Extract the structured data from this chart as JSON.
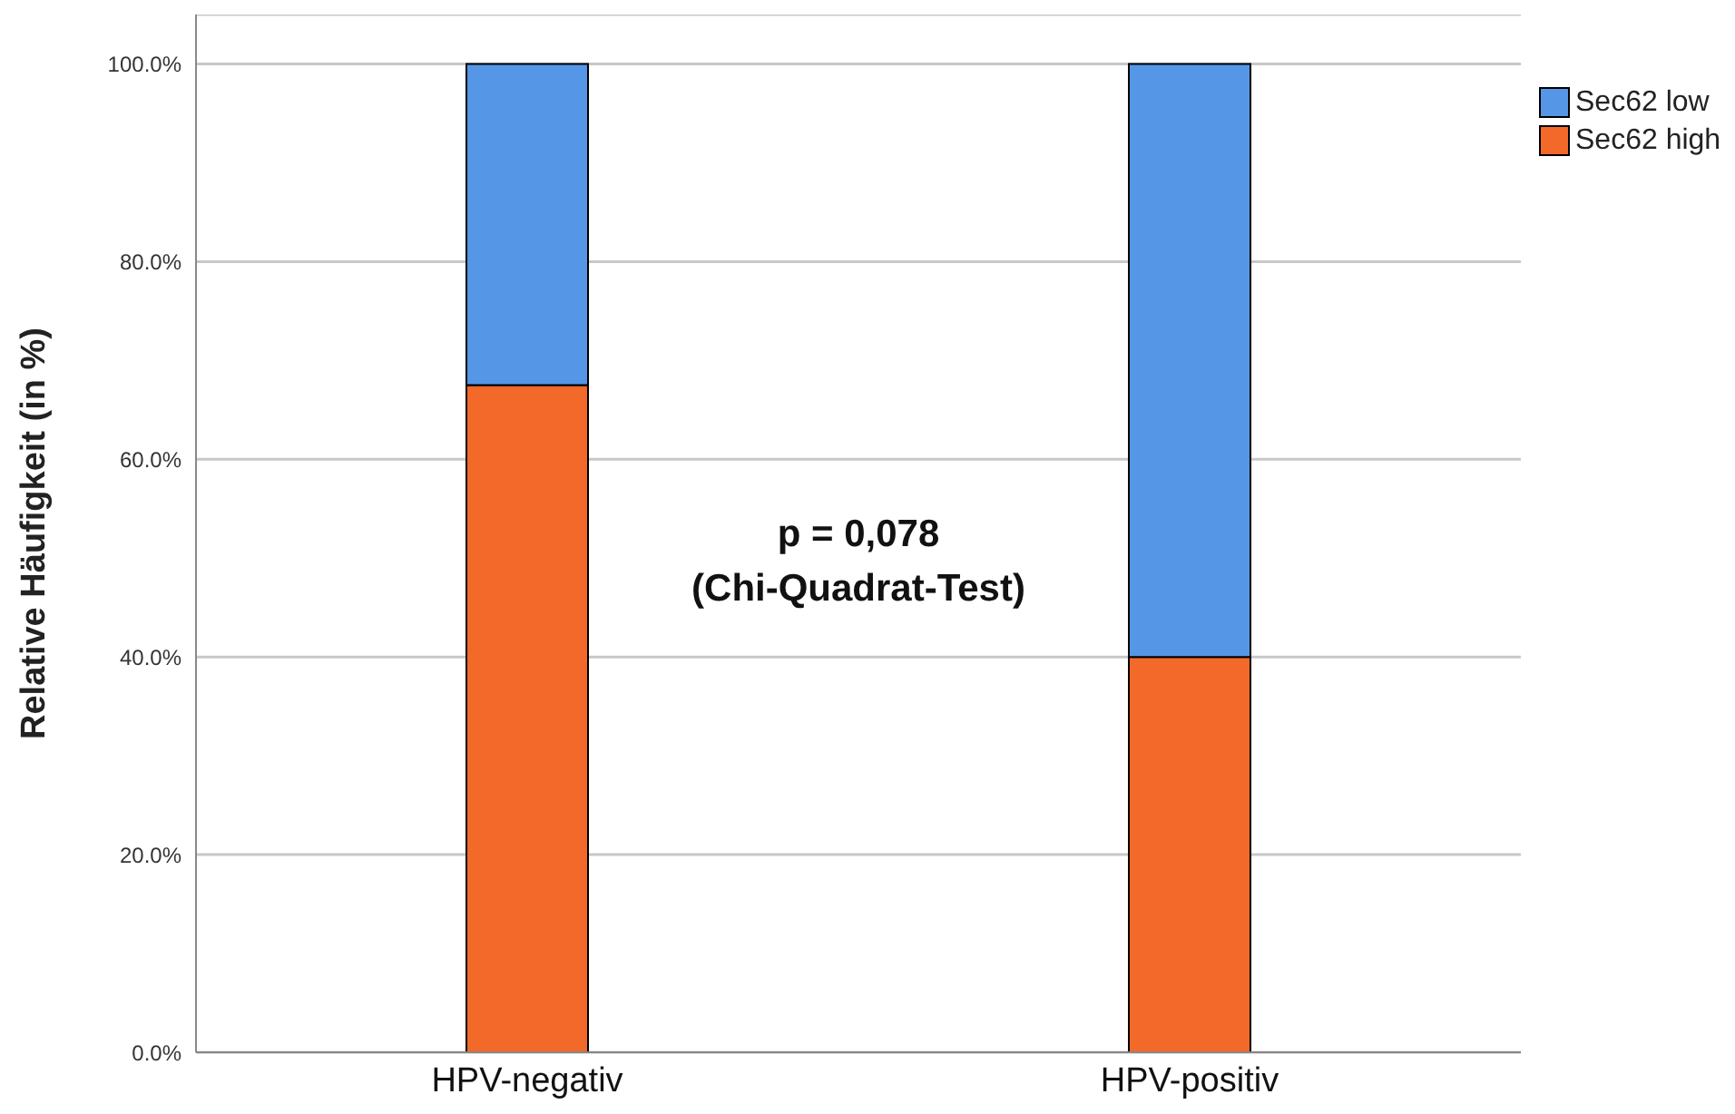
{
  "chart_data": {
    "type": "bar",
    "stacked": true,
    "ylabel": "Relative Häufigkeit (in %)",
    "categories": [
      "HPV-negativ",
      "HPV-positiv"
    ],
    "series": [
      {
        "name": "Sec62 high",
        "color": "#f2692a",
        "values": [
          67.5,
          40.0
        ]
      },
      {
        "name": "Sec62 low",
        "color": "#5596e6",
        "values": [
          32.5,
          60.0
        ]
      }
    ],
    "ylim": [
      0,
      105
    ],
    "yticks": [
      {
        "value": 0,
        "label": "0.0%"
      },
      {
        "value": 20,
        "label": "20.0%"
      },
      {
        "value": 40,
        "label": "40.0%"
      },
      {
        "value": 60,
        "label": "60.0%"
      },
      {
        "value": 80,
        "label": "80.0%"
      },
      {
        "value": 100,
        "label": "100.0%"
      }
    ],
    "grid": "y",
    "legend": "top right",
    "annotations": [
      "p = 0,078",
      "(Chi-Quadrat-Test)"
    ]
  }
}
